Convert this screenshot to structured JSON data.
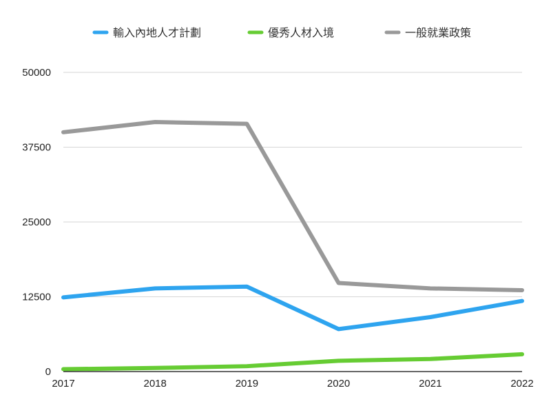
{
  "chart_data": {
    "type": "line",
    "categories": [
      "2017",
      "2018",
      "2019",
      "2020",
      "2021",
      "2022"
    ],
    "series": [
      {
        "name": "輸入內地人才計劃",
        "color": "#2ea4ef",
        "values": [
          12400,
          13900,
          14200,
          7100,
          9100,
          11800
        ]
      },
      {
        "name": "優秀人材入境",
        "color": "#66cc33",
        "values": [
          400,
          600,
          900,
          1800,
          2100,
          2900
        ]
      },
      {
        "name": "一般就業政策",
        "color": "#999999",
        "values": [
          40000,
          41700,
          41400,
          14800,
          13900,
          13600
        ]
      }
    ],
    "y_ticks": [
      "0",
      "12500",
      "25000",
      "37500",
      "50000"
    ],
    "ylim": [
      0,
      50000
    ],
    "grid": true,
    "legend_position": "top"
  }
}
